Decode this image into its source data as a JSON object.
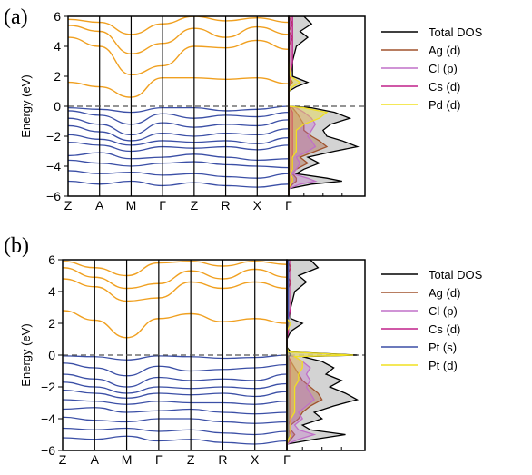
{
  "chart_data": [
    {
      "panel_label": "(a)",
      "type": "line",
      "ylabel": "Energy (eV)",
      "ylim": [
        -6,
        6
      ],
      "yticks": [
        -6,
        -4,
        -2,
        0,
        2,
        4,
        6
      ],
      "kpath": [
        "Z",
        "A",
        "M",
        "Γ",
        "Z",
        "R",
        "X",
        "Γ"
      ],
      "fermi_level": 0,
      "colors": {
        "valence": "#3b4fa6",
        "conduction": "#f0a020",
        "fermi": "#555555"
      },
      "legend": [
        {
          "label": "Total DOS",
          "color": "#000000"
        },
        {
          "label": "Ag (d)",
          "color": "#a0522d"
        },
        {
          "label": "Cl (p)",
          "color": "#c070c8"
        },
        {
          "label": "Cs (d)",
          "color": "#c0208a"
        },
        {
          "label": "Pd (d)",
          "color": "#f0e020"
        }
      ],
      "conduction_bands": [
        [
          5.8,
          5.6,
          4.8,
          5.5,
          6.0,
          5.7,
          5.9,
          5.6
        ],
        [
          5.4,
          5.0,
          3.5,
          4.2,
          5.2,
          4.6,
          5.3,
          4.8
        ],
        [
          4.6,
          4.0,
          2.1,
          2.7,
          4.0,
          3.9,
          4.4,
          3.8
        ],
        [
          1.6,
          1.3,
          0.6,
          1.9,
          1.9,
          1.8,
          1.9,
          1.5
        ]
      ],
      "valence_bands": [
        [
          -0.1,
          -0.2,
          -0.4,
          -0.1,
          -0.1,
          -0.3,
          -0.2,
          0.0
        ],
        [
          -0.3,
          -0.6,
          -1.2,
          -0.5,
          -0.8,
          -0.6,
          -0.7,
          -0.4
        ],
        [
          -0.8,
          -1.2,
          -1.9,
          -1.1,
          -1.4,
          -1.2,
          -1.3,
          -0.9
        ],
        [
          -1.3,
          -1.7,
          -2.3,
          -1.8,
          -2.0,
          -1.8,
          -1.9,
          -1.5
        ],
        [
          -1.9,
          -2.2,
          -2.6,
          -2.3,
          -2.4,
          -2.3,
          -2.5,
          -2.1
        ],
        [
          -2.4,
          -2.6,
          -3.0,
          -2.7,
          -2.8,
          -2.7,
          -2.9,
          -2.6
        ],
        [
          -3.3,
          -3.1,
          -3.5,
          -3.4,
          -3.2,
          -3.4,
          -3.6,
          -3.5
        ],
        [
          -3.6,
          -3.8,
          -4.0,
          -3.8,
          -3.7,
          -3.9,
          -4.0,
          -4.1
        ],
        [
          -4.3,
          -4.5,
          -4.4,
          -4.6,
          -4.5,
          -4.7,
          -4.8,
          -4.5
        ],
        [
          -5.0,
          -5.2,
          -5.0,
          -5.3,
          -5.1,
          -5.3,
          -5.4,
          -5.2
        ]
      ],
      "dos": {
        "energies": [
          -6.0,
          -5.5,
          -5.2,
          -5.0,
          -4.8,
          -4.5,
          -4.2,
          -3.8,
          -3.4,
          -3.0,
          -2.7,
          -2.3,
          -2.0,
          -1.6,
          -1.2,
          -0.8,
          -0.4,
          -0.1,
          0.0,
          0.5,
          1.0,
          1.3,
          1.6,
          2.0,
          3.0,
          4.0,
          4.6,
          5.0,
          5.5,
          6.0
        ],
        "total": [
          0.0,
          0.0,
          0.3,
          0.7,
          0.5,
          0.1,
          0.2,
          0.4,
          0.25,
          0.6,
          0.9,
          0.7,
          0.5,
          0.45,
          0.55,
          0.8,
          0.6,
          0.3,
          0.0,
          0.0,
          0.0,
          0.1,
          0.25,
          0.05,
          0.05,
          0.1,
          0.25,
          0.15,
          0.3,
          0.2
        ],
        "ag_d": [
          0.0,
          0.0,
          0.05,
          0.1,
          0.1,
          0.05,
          0.1,
          0.25,
          0.15,
          0.35,
          0.5,
          0.4,
          0.3,
          0.2,
          0.2,
          0.15,
          0.1,
          0.05,
          0.0,
          0.0,
          0.0,
          0.0,
          0.05,
          0.0,
          0.0,
          0.0,
          0.05,
          0.0,
          0.05,
          0.0
        ],
        "cl_p": [
          0.0,
          0.0,
          0.15,
          0.35,
          0.25,
          0.05,
          0.1,
          0.15,
          0.1,
          0.25,
          0.35,
          0.3,
          0.25,
          0.3,
          0.35,
          0.3,
          0.2,
          0.1,
          0.0,
          0.0,
          0.0,
          0.0,
          0.02,
          0.0,
          0.0,
          0.0,
          0.02,
          0.0,
          0.02,
          0.0
        ],
        "cs_d": [
          0.0,
          0.0,
          0.02,
          0.05,
          0.05,
          0.02,
          0.05,
          0.05,
          0.05,
          0.05,
          0.05,
          0.05,
          0.05,
          0.05,
          0.05,
          0.05,
          0.05,
          0.02,
          0.0,
          0.0,
          0.0,
          0.0,
          0.02,
          0.02,
          0.05,
          0.05,
          0.05,
          0.05,
          0.05,
          0.05
        ],
        "pd_d": [
          0.0,
          0.0,
          0.02,
          0.05,
          0.05,
          0.02,
          0.05,
          0.05,
          0.05,
          0.1,
          0.1,
          0.1,
          0.1,
          0.1,
          0.2,
          0.4,
          0.5,
          0.2,
          0.0,
          0.0,
          0.0,
          0.05,
          0.15,
          0.02,
          0.0,
          0.0,
          0.0,
          0.0,
          0.0,
          0.0
        ]
      }
    },
    {
      "panel_label": "(b)",
      "type": "line",
      "ylabel": "Energy (eV)",
      "ylim": [
        -6,
        6
      ],
      "yticks": [
        -6,
        -4,
        -2,
        0,
        2,
        4,
        6
      ],
      "kpath": [
        "Z",
        "A",
        "M",
        "Γ",
        "Z",
        "R",
        "X",
        "Γ"
      ],
      "fermi_level": 0,
      "colors": {
        "valence": "#3b4fa6",
        "conduction": "#f0a020",
        "fermi": "#555555"
      },
      "legend": [
        {
          "label": "Total DOS",
          "color": "#000000"
        },
        {
          "label": "Ag (d)",
          "color": "#a0522d"
        },
        {
          "label": "Cl (p)",
          "color": "#c070c8"
        },
        {
          "label": "Cs (d)",
          "color": "#c0208a"
        },
        {
          "label": "Pt (s)",
          "color": "#3b4fa6"
        },
        {
          "label": "Pt (d)",
          "color": "#f0e020"
        }
      ],
      "conduction_bands": [
        [
          5.9,
          5.5,
          5.0,
          5.8,
          5.9,
          5.6,
          5.9,
          5.7
        ],
        [
          5.5,
          4.9,
          4.2,
          4.5,
          5.3,
          4.8,
          5.4,
          4.9
        ],
        [
          4.8,
          4.3,
          3.4,
          3.6,
          4.6,
          4.2,
          4.6,
          4.2
        ],
        [
          2.8,
          2.2,
          1.1,
          2.3,
          2.6,
          2.1,
          2.3,
          2.0
        ]
      ],
      "valence_bands": [
        [
          -0.05,
          -0.1,
          -0.3,
          -0.05,
          -0.1,
          -0.2,
          -0.15,
          0.0
        ],
        [
          -0.5,
          -0.8,
          -1.3,
          -0.7,
          -1.0,
          -0.9,
          -0.8,
          -0.6
        ],
        [
          -1.2,
          -1.5,
          -2.0,
          -1.4,
          -1.6,
          -1.5,
          -1.6,
          -1.2
        ],
        [
          -1.7,
          -2.0,
          -2.4,
          -2.0,
          -2.1,
          -2.0,
          -2.1,
          -1.8
        ],
        [
          -2.2,
          -2.4,
          -2.7,
          -2.4,
          -2.5,
          -2.4,
          -2.6,
          -2.3
        ],
        [
          -2.8,
          -2.9,
          -3.1,
          -2.9,
          -3.0,
          -3.0,
          -3.1,
          -2.9
        ],
        [
          -3.4,
          -3.3,
          -3.6,
          -3.5,
          -3.4,
          -3.6,
          -3.7,
          -3.6
        ],
        [
          -3.9,
          -4.1,
          -4.2,
          -4.0,
          -4.0,
          -4.2,
          -4.3,
          -4.2
        ],
        [
          -4.6,
          -4.7,
          -4.6,
          -4.8,
          -4.7,
          -4.9,
          -5.0,
          -4.8
        ],
        [
          -5.2,
          -5.3,
          -5.1,
          -5.4,
          -5.3,
          -5.5,
          -5.6,
          -5.4
        ]
      ],
      "dos": {
        "energies": [
          -6.0,
          -5.6,
          -5.3,
          -5.0,
          -4.7,
          -4.4,
          -4.0,
          -3.6,
          -3.2,
          -2.8,
          -2.4,
          -2.0,
          -1.6,
          -1.2,
          -0.8,
          -0.4,
          -0.1,
          0.0,
          0.2,
          0.5,
          1.0,
          1.5,
          2.0,
          2.3,
          3.0,
          4.0,
          4.6,
          5.0,
          5.5,
          6.0
        ],
        "total": [
          0.0,
          0.0,
          0.35,
          0.75,
          0.3,
          0.2,
          0.45,
          0.35,
          0.6,
          0.9,
          0.75,
          0.55,
          0.7,
          0.5,
          0.6,
          0.45,
          0.2,
          0.9,
          0.05,
          0.0,
          0.0,
          0.05,
          0.2,
          0.05,
          0.05,
          0.1,
          0.25,
          0.15,
          0.4,
          0.3
        ],
        "ag_d": [
          0.0,
          0.0,
          0.05,
          0.1,
          0.05,
          0.05,
          0.15,
          0.2,
          0.3,
          0.45,
          0.4,
          0.3,
          0.2,
          0.15,
          0.1,
          0.05,
          0.02,
          0.0,
          0.0,
          0.0,
          0.0,
          0.0,
          0.02,
          0.0,
          0.0,
          0.0,
          0.05,
          0.0,
          0.05,
          0.0
        ],
        "cl_p": [
          0.0,
          0.0,
          0.15,
          0.35,
          0.15,
          0.1,
          0.2,
          0.15,
          0.25,
          0.35,
          0.3,
          0.25,
          0.3,
          0.25,
          0.3,
          0.2,
          0.1,
          0.0,
          0.0,
          0.0,
          0.0,
          0.0,
          0.02,
          0.0,
          0.0,
          0.0,
          0.02,
          0.0,
          0.02,
          0.0
        ],
        "cs_d": [
          0.0,
          0.0,
          0.02,
          0.05,
          0.02,
          0.02,
          0.05,
          0.05,
          0.05,
          0.05,
          0.05,
          0.05,
          0.05,
          0.05,
          0.05,
          0.05,
          0.02,
          0.0,
          0.0,
          0.0,
          0.0,
          0.02,
          0.02,
          0.02,
          0.05,
          0.05,
          0.05,
          0.05,
          0.05,
          0.05
        ],
        "pt_s": [
          0.0,
          0.0,
          0.02,
          0.02,
          0.02,
          0.02,
          0.02,
          0.02,
          0.02,
          0.02,
          0.02,
          0.02,
          0.02,
          0.02,
          0.02,
          0.02,
          0.02,
          0.05,
          0.02,
          0.0,
          0.0,
          0.0,
          0.02,
          0.02,
          0.02,
          0.02,
          0.02,
          0.02,
          0.02,
          0.02
        ],
        "pt_d": [
          0.0,
          0.0,
          0.02,
          0.05,
          0.05,
          0.05,
          0.05,
          0.1,
          0.1,
          0.1,
          0.1,
          0.1,
          0.15,
          0.15,
          0.2,
          0.2,
          0.1,
          0.85,
          0.02,
          0.0,
          0.0,
          0.0,
          0.05,
          0.0,
          0.0,
          0.0,
          0.0,
          0.0,
          0.0,
          0.0
        ]
      }
    }
  ]
}
